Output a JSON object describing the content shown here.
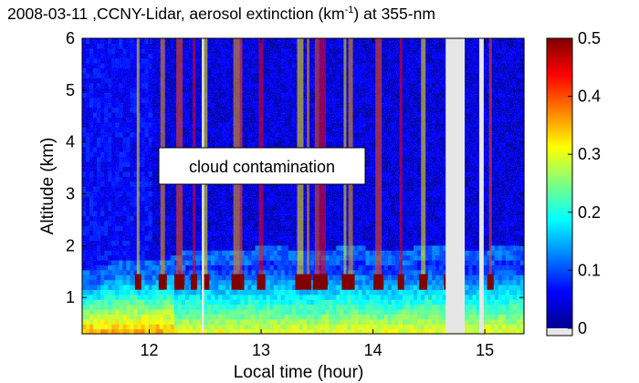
{
  "chart_data": {
    "type": "heatmap",
    "title": {
      "prefix": "2008-03-11 ,CCNY-Lidar, aerosol extinction (km",
      "superscript": "-1",
      "suffix": ") at 355-nm"
    },
    "xlabel": "Local time (hour)",
    "ylabel": "Altitude (km)",
    "xlim": [
      11.4,
      15.35
    ],
    "ylim": [
      0.3,
      6.0
    ],
    "xticks": [
      12,
      13,
      14,
      15
    ],
    "yticks": [
      1,
      2,
      3,
      4,
      5,
      6
    ],
    "annotation": "cloud contamination",
    "colorbar": {
      "min": 0,
      "max": 0.5,
      "ticks": [
        0,
        0.1,
        0.2,
        0.3,
        0.4,
        0.5
      ],
      "colormap": "jet",
      "nodata_color": "#e6e6e6"
    },
    "field": {
      "background_aerosol_above_1_5km": 0.04,
      "near_surface_aerosol_range": [
        0.12,
        0.35
      ],
      "aerosol_layer_top_km": [
        1.2,
        1.6
      ],
      "cloud_base_extinction": 0.5
    },
    "cloud_columns_local_time": [
      11.9,
      12.12,
      12.27,
      12.4,
      12.5,
      12.78,
      12.82,
      13.0,
      13.35,
      13.42,
      13.5,
      13.55,
      13.75,
      13.8,
      14.05,
      14.25,
      14.45,
      14.68,
      15.05
    ],
    "missing_data_intervals": [
      [
        14.65,
        14.82
      ],
      [
        14.95,
        14.99
      ],
      [
        12.47,
        12.49
      ]
    ]
  }
}
